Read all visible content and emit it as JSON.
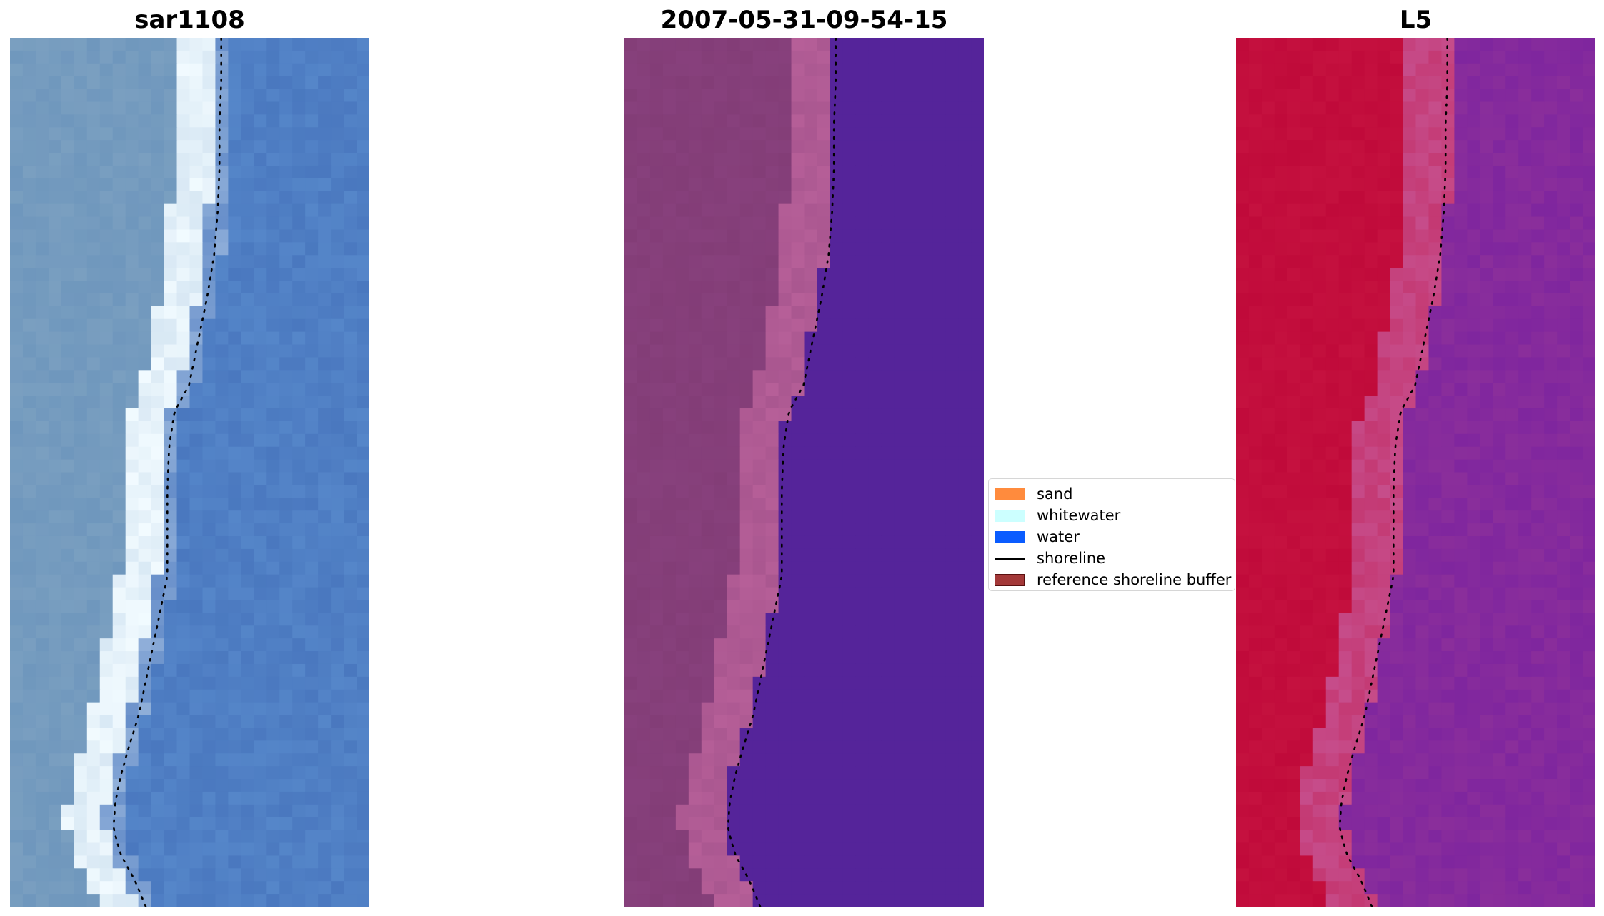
{
  "figure": {
    "panels": [
      {
        "id": "rgb",
        "title": "sar1108",
        "kind": "rgb-image",
        "colors": {
          "land": "#7a9fc0",
          "land_alt": "#6f97bd",
          "surf": "#d8e8f4",
          "surf_bright": "#f2fbff",
          "water": "#4a78bf",
          "water_alt": "#5586c9"
        },
        "icon": "satellite-rgb-image"
      },
      {
        "id": "classified",
        "title": "2007-05-31-09-54-15",
        "kind": "classified-image",
        "colors": {
          "land": "#833d77",
          "land_alt": "#8a4380",
          "beach": "#b65f98",
          "water": "#55249a"
        },
        "icon": "classification-map"
      },
      {
        "id": "index",
        "title": "L5",
        "kind": "index-image",
        "colors": {
          "land": "#c00a3a",
          "land_alt": "#c81642",
          "beach": "#c64d8b",
          "water": "#8a2e9b",
          "water_alt": "#7a22a0"
        },
        "icon": "index-heatmap"
      }
    ],
    "shoreline_profile": [
      [
        0.0,
        0.58
      ],
      [
        0.05,
        0.58
      ],
      [
        0.1,
        0.575
      ],
      [
        0.15,
        0.575
      ],
      [
        0.2,
        0.57
      ],
      [
        0.25,
        0.56
      ],
      [
        0.3,
        0.54
      ],
      [
        0.35,
        0.515
      ],
      [
        0.4,
        0.49
      ],
      [
        0.43,
        0.45
      ],
      [
        0.47,
        0.435
      ],
      [
        0.52,
        0.43
      ],
      [
        0.57,
        0.43
      ],
      [
        0.62,
        0.43
      ],
      [
        0.66,
        0.41
      ],
      [
        0.7,
        0.39
      ],
      [
        0.74,
        0.37
      ],
      [
        0.78,
        0.35
      ],
      [
        0.82,
        0.32
      ],
      [
        0.85,
        0.3
      ],
      [
        0.88,
        0.285
      ],
      [
        0.91,
        0.28
      ],
      [
        0.94,
        0.3
      ],
      [
        0.97,
        0.34
      ],
      [
        1.0,
        0.37
      ]
    ],
    "legend": {
      "items": [
        {
          "label": "sand",
          "type": "patch",
          "color": "#ff8b3d",
          "border": "#ff8b3d"
        },
        {
          "label": "whitewater",
          "type": "patch",
          "color": "#ccffff",
          "border": "#ccffff"
        },
        {
          "label": "water",
          "type": "patch",
          "color": "#0a5cff",
          "border": "#0a5cff"
        },
        {
          "label": "shoreline",
          "type": "line",
          "color": "#000000"
        },
        {
          "label": "reference shoreline buffer",
          "type": "patch",
          "color": "#a33838",
          "border": "#5a1010"
        }
      ]
    }
  }
}
